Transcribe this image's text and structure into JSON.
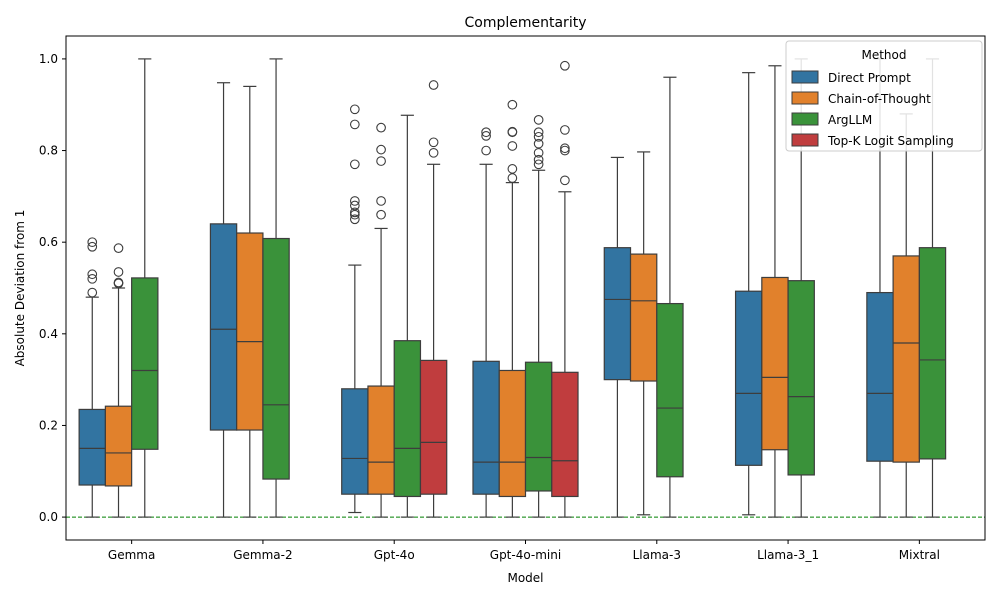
{
  "chart_data": {
    "type": "box",
    "title": "Complementarity",
    "xlabel": "Model",
    "ylabel": "Absolute Deviation from 1",
    "ylim": [
      -0.05,
      1.05
    ],
    "yticks": [
      "0.0",
      "0.2",
      "0.4",
      "0.6",
      "0.8",
      "1.0"
    ],
    "reference_line": 0.0,
    "reference_line_color": "#008000",
    "categories": [
      "Gemma",
      "Gemma-2",
      "Gpt-4o",
      "Gpt-4o-mini",
      "Llama-3",
      "Llama-3_1",
      "Mixtral"
    ],
    "legend": {
      "title": "Method",
      "position": "top-right",
      "entries": [
        "Direct Prompt",
        "Chain-of-Thought",
        "ArgLLM",
        "Top-K Logit Sampling"
      ]
    },
    "series": [
      {
        "name": "Direct Prompt",
        "color": "#3274a1",
        "boxes": [
          {
            "min": 0.0,
            "q1": 0.07,
            "median": 0.15,
            "q3": 0.235,
            "max": 0.48,
            "outliers": [
              0.49,
              0.52,
              0.53,
              0.59,
              0.6
            ]
          },
          {
            "min": 0.0,
            "q1": 0.19,
            "median": 0.41,
            "q3": 0.64,
            "max": 0.948,
            "outliers": []
          },
          {
            "min": 0.01,
            "q1": 0.05,
            "median": 0.128,
            "q3": 0.28,
            "max": 0.55,
            "outliers": [
              0.65,
              0.66,
              0.665,
              0.68,
              0.69,
              0.77,
              0.857,
              0.89
            ]
          },
          {
            "min": 0.0,
            "q1": 0.05,
            "median": 0.12,
            "q3": 0.34,
            "max": 0.77,
            "outliers": [
              0.8,
              0.832,
              0.84
            ]
          },
          {
            "min": 0.0,
            "q1": 0.3,
            "median": 0.475,
            "q3": 0.588,
            "max": 0.785,
            "outliers": []
          },
          {
            "min": 0.005,
            "q1": 0.113,
            "median": 0.27,
            "q3": 0.493,
            "max": 0.97,
            "outliers": []
          },
          {
            "min": 0.0,
            "q1": 0.122,
            "median": 0.27,
            "q3": 0.49,
            "max": 1.0,
            "outliers": []
          }
        ]
      },
      {
        "name": "Chain-of-Thought",
        "color": "#e1812c",
        "boxes": [
          {
            "min": 0.0,
            "q1": 0.068,
            "median": 0.14,
            "q3": 0.242,
            "max": 0.5,
            "outliers": [
              0.51,
              0.512,
              0.535,
              0.587
            ]
          },
          {
            "min": 0.0,
            "q1": 0.19,
            "median": 0.383,
            "q3": 0.62,
            "max": 0.94,
            "outliers": []
          },
          {
            "min": 0.0,
            "q1": 0.05,
            "median": 0.12,
            "q3": 0.286,
            "max": 0.63,
            "outliers": [
              0.66,
              0.69,
              0.777,
              0.802,
              0.85
            ]
          },
          {
            "min": 0.0,
            "q1": 0.045,
            "median": 0.12,
            "q3": 0.32,
            "max": 0.73,
            "outliers": [
              0.74,
              0.76,
              0.81,
              0.84,
              0.841,
              0.9
            ]
          },
          {
            "min": 0.005,
            "q1": 0.297,
            "median": 0.472,
            "q3": 0.574,
            "max": 0.797,
            "outliers": []
          },
          {
            "min": 0.0,
            "q1": 0.147,
            "median": 0.305,
            "q3": 0.523,
            "max": 0.985,
            "outliers": []
          },
          {
            "min": 0.0,
            "q1": 0.12,
            "median": 0.38,
            "q3": 0.57,
            "max": 0.88,
            "outliers": []
          }
        ]
      },
      {
        "name": "ArgLLM",
        "color": "#3a923a",
        "boxes": [
          {
            "min": 0.0,
            "q1": 0.148,
            "median": 0.32,
            "q3": 0.522,
            "max": 1.0,
            "outliers": []
          },
          {
            "min": 0.0,
            "q1": 0.083,
            "median": 0.245,
            "q3": 0.608,
            "max": 1.0,
            "outliers": []
          },
          {
            "min": 0.0,
            "q1": 0.045,
            "median": 0.15,
            "q3": 0.385,
            "max": 0.877,
            "outliers": []
          },
          {
            "min": 0.0,
            "q1": 0.057,
            "median": 0.13,
            "q3": 0.338,
            "max": 0.757,
            "outliers": [
              0.77,
              0.78,
              0.795,
              0.815,
              0.83,
              0.84,
              0.867
            ]
          },
          {
            "min": 0.0,
            "q1": 0.088,
            "median": 0.238,
            "q3": 0.466,
            "max": 0.96,
            "outliers": []
          },
          {
            "min": 0.0,
            "q1": 0.092,
            "median": 0.263,
            "q3": 0.516,
            "max": 1.0,
            "outliers": []
          },
          {
            "min": 0.0,
            "q1": 0.127,
            "median": 0.343,
            "q3": 0.588,
            "max": 1.0,
            "outliers": []
          }
        ]
      },
      {
        "name": "Top-K Logit Sampling",
        "color": "#c03d3e",
        "boxes": [
          null,
          null,
          {
            "min": 0.0,
            "q1": 0.05,
            "median": 0.163,
            "q3": 0.342,
            "max": 0.77,
            "outliers": [
              0.795,
              0.818,
              0.943
            ]
          },
          {
            "min": 0.0,
            "q1": 0.045,
            "median": 0.123,
            "q3": 0.316,
            "max": 0.71,
            "outliers": [
              0.735,
              0.8,
              0.805,
              0.845,
              0.985
            ]
          },
          null,
          null,
          null
        ]
      }
    ]
  }
}
